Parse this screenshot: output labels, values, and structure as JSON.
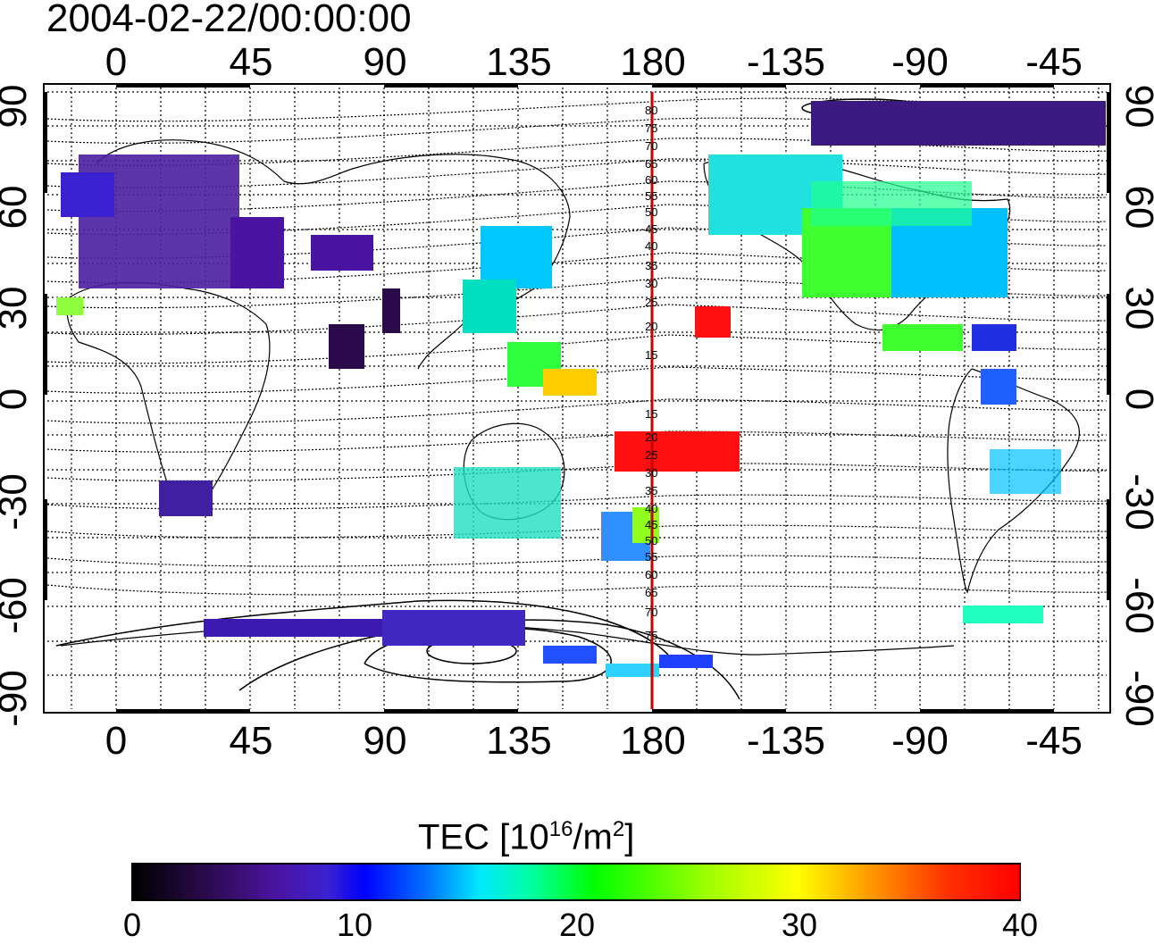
{
  "title": "2004-02-22/00:00:00",
  "axes": {
    "lon_top_labels": [
      "0",
      "45",
      "90",
      "135",
      "180",
      "-135",
      "-90",
      "-45"
    ],
    "lon_bottom_labels": [
      "0",
      "45",
      "90",
      "135",
      "180",
      "-135",
      "-90",
      "-45"
    ],
    "lat_left_labels": [
      "90",
      "60",
      "30",
      "0",
      "-30",
      "-60",
      "-90"
    ],
    "lat_right_labels": [
      "90",
      "60",
      "30",
      "0",
      "-30",
      "-60",
      "-90"
    ]
  },
  "meridian_labels": [
    "80",
    "75",
    "70",
    "65",
    "60",
    "55",
    "50",
    "45",
    "40",
    "35",
    "30",
    "25",
    "20",
    "15",
    "15",
    "20",
    "25",
    "30",
    "35",
    "40",
    "45",
    "50",
    "55",
    "60",
    "65",
    "70",
    "75"
  ],
  "colorbar": {
    "title": "TEC  [10",
    "title_exp": "16",
    "title_unit": "/m",
    "title_unit_exp": "2",
    "title_close": "]",
    "ticks": [
      "0",
      "10",
      "20",
      "30",
      "40"
    ],
    "range": [
      0,
      40
    ]
  },
  "colors": {
    "meridian_line": "#cc0000",
    "low": "#000000",
    "high": "#ff0000"
  }
}
